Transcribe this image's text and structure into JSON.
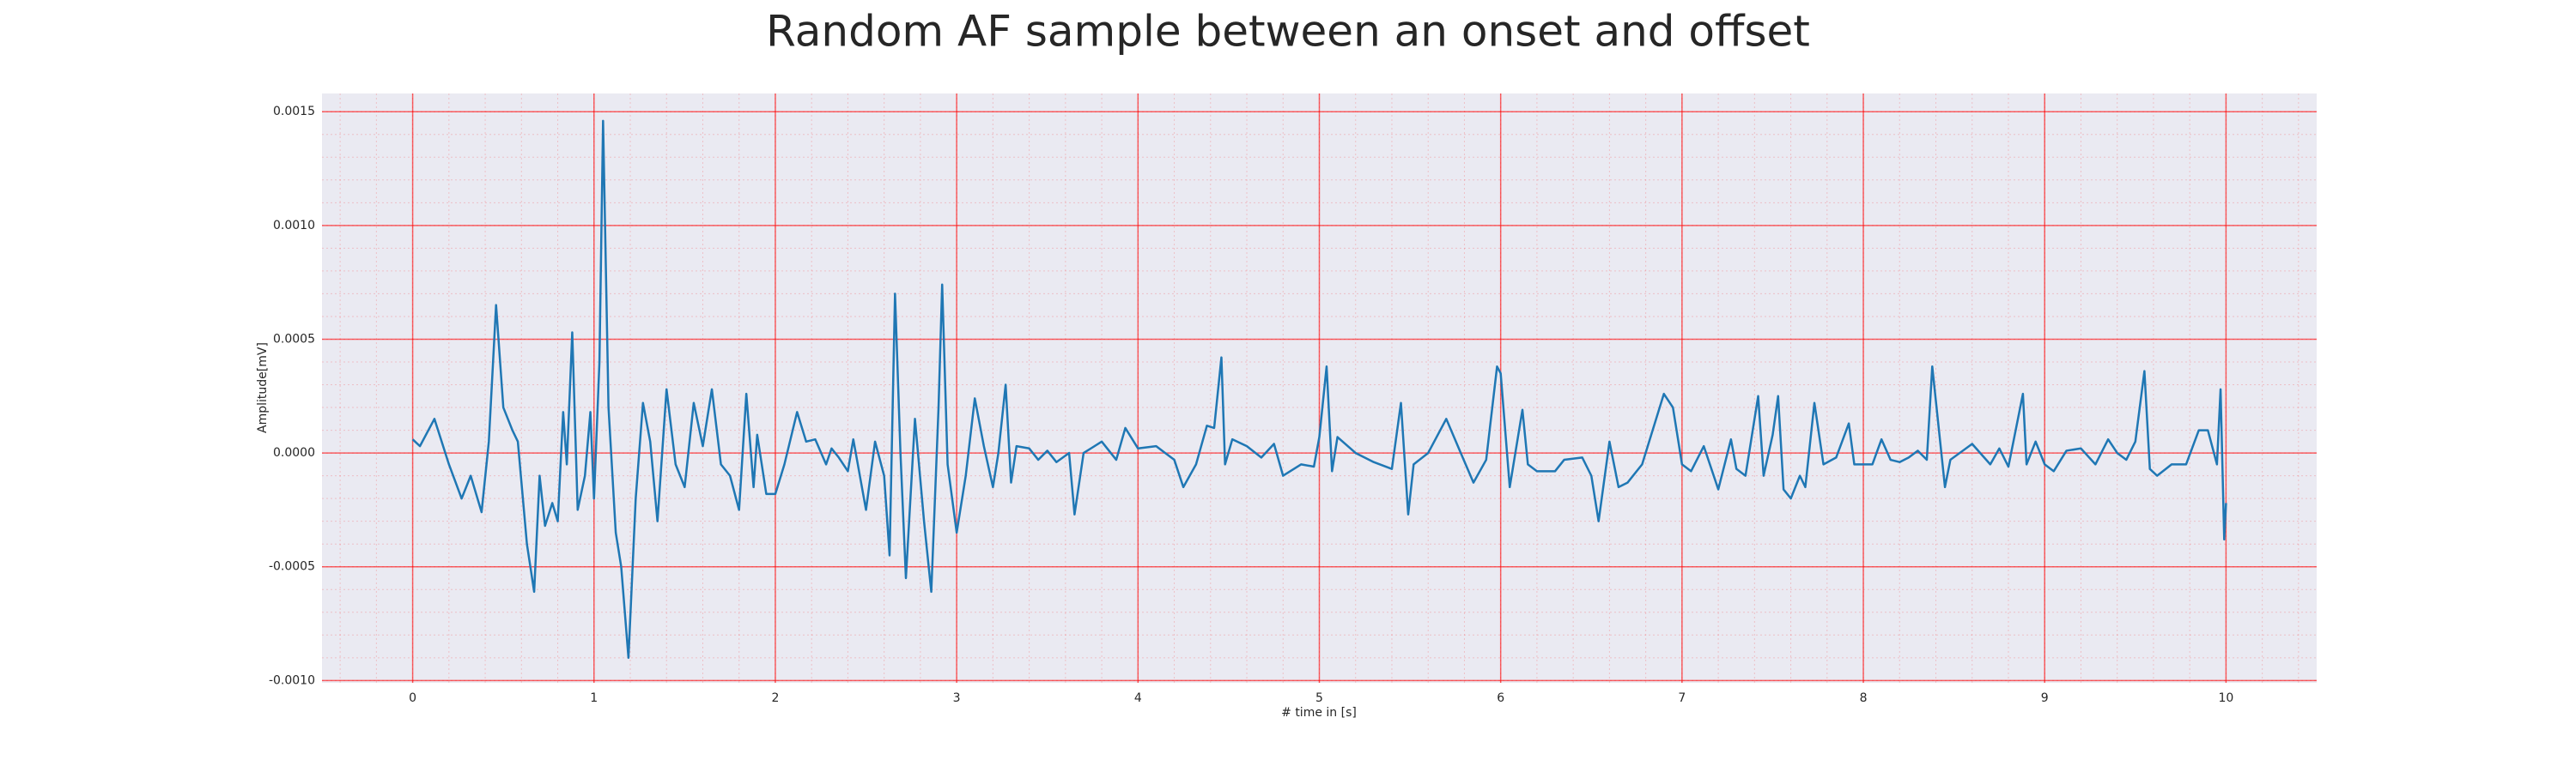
{
  "chart_data": {
    "type": "line",
    "title": "Random AF sample between an onset and offset",
    "x_label": "# time in [s]",
    "y_label": "Amplitude[mV]",
    "xlim": [
      -0.5,
      10.5
    ],
    "ylim": [
      -0.00101,
      0.00158
    ],
    "xticks": [
      0,
      1,
      2,
      3,
      4,
      5,
      6,
      7,
      8,
      9,
      10
    ],
    "yticks": [
      {
        "value": -0.001,
        "label": "-0.0010"
      },
      -0.0005,
      {
        "value": 0,
        "label": "0.0000"
      },
      0.0005,
      {
        "value": 0.001,
        "label": "0.0010"
      },
      0.0015
    ],
    "grid": true,
    "minor_grid": true,
    "grid_color": "#ff0000",
    "background": "#eaeaf2",
    "x": [
      0,
      0.04,
      0.12,
      0.2,
      0.27,
      0.32,
      0.38,
      0.42,
      0.46,
      0.5,
      0.55,
      0.58,
      0.63,
      0.67,
      0.7,
      0.73,
      0.77,
      0.8,
      0.83,
      0.85,
      0.88,
      0.91,
      0.95,
      0.98,
      1.0,
      1.03,
      1.05,
      1.08,
      1.12,
      1.15,
      1.19,
      1.23,
      1.27,
      1.31,
      1.35,
      1.4,
      1.45,
      1.5,
      1.55,
      1.6,
      1.65,
      1.7,
      1.75,
      1.8,
      1.84,
      1.88,
      1.9,
      1.95,
      2.0,
      2.05,
      2.12,
      2.17,
      2.22,
      2.28,
      2.31,
      2.35,
      2.4,
      2.43,
      2.5,
      2.55,
      2.6,
      2.63,
      2.66,
      2.69,
      2.72,
      2.77,
      2.82,
      2.86,
      2.9,
      2.92,
      2.95,
      3.0,
      3.05,
      3.1,
      3.15,
      3.2,
      3.23,
      3.27,
      3.3,
      3.33,
      3.4,
      3.45,
      3.5,
      3.55,
      3.62,
      3.65,
      3.7,
      3.8,
      3.88,
      3.93,
      4.0,
      4.1,
      4.15,
      4.2,
      4.25,
      4.32,
      4.38,
      4.42,
      4.46,
      4.48,
      4.52,
      4.6,
      4.68,
      4.75,
      4.8,
      4.9,
      4.97,
      5.0,
      5.04,
      5.07,
      5.1,
      5.2,
      5.3,
      5.4,
      5.45,
      5.49,
      5.52,
      5.6,
      5.7,
      5.78,
      5.85,
      5.92,
      5.98,
      6.0,
      6.05,
      6.12,
      6.15,
      6.2,
      6.3,
      6.35,
      6.45,
      6.5,
      6.54,
      6.6,
      6.65,
      6.7,
      6.78,
      6.9,
      6.95,
      7.0,
      7.05,
      7.12,
      7.2,
      7.27,
      7.3,
      7.35,
      7.42,
      7.45,
      7.5,
      7.53,
      7.56,
      7.6,
      7.65,
      7.68,
      7.73,
      7.78,
      7.85,
      7.92,
      7.95,
      8.05,
      8.1,
      8.15,
      8.2,
      8.25,
      8.3,
      8.35,
      8.38,
      8.45,
      8.48,
      8.6,
      8.7,
      8.75,
      8.8,
      8.88,
      8.9,
      8.95,
      9.0,
      9.05,
      9.12,
      9.2,
      9.28,
      9.35,
      9.4,
      9.45,
      9.5,
      9.55,
      9.58,
      9.62,
      9.7,
      9.78,
      9.85,
      9.9,
      9.95,
      9.97,
      9.99,
      10.0
    ],
    "series": [
      {
        "color": "#1f77b4",
        "values": [
          6e-05,
          3e-05,
          0.00015,
          -5e-05,
          -0.0002,
          -0.0001,
          -0.00026,
          5e-05,
          0.00065,
          0.0002,
          0.0001,
          5e-05,
          -0.0004,
          -0.00061,
          -0.0001,
          -0.00032,
          -0.00022,
          -0.0003,
          0.00018,
          -5e-05,
          0.00053,
          -0.00025,
          -0.0001,
          0.00018,
          -0.0002,
          0.0004,
          0.00146,
          0.0002,
          -0.00035,
          -0.0005,
          -0.0009,
          -0.0002,
          0.00022,
          5e-05,
          -0.0003,
          0.00028,
          -5e-05,
          -0.00015,
          0.00022,
          3e-05,
          0.00028,
          -5e-05,
          -0.0001,
          -0.00025,
          0.00026,
          -0.00015,
          8e-05,
          -0.00018,
          -0.00018,
          -5e-05,
          0.00018,
          5e-05,
          6e-05,
          -5e-05,
          2e-05,
          -2e-05,
          -8e-05,
          6e-05,
          -0.00025,
          5e-05,
          -0.0001,
          -0.00045,
          0.0007,
          0,
          -0.00055,
          0.00015,
          -0.0003,
          -0.00061,
          0.0002,
          0.00074,
          -5e-05,
          -0.00035,
          -0.0001,
          0.00024,
          3e-05,
          -0.00015,
          0,
          0.0003,
          -0.00013,
          3e-05,
          2e-05,
          -3e-05,
          1e-05,
          -4e-05,
          0,
          -0.00027,
          0,
          5e-05,
          -3e-05,
          0.00011,
          2e-05,
          3e-05,
          0,
          -3e-05,
          -0.00015,
          -5e-05,
          0.00012,
          0.00011,
          0.00042,
          -5e-05,
          6e-05,
          3e-05,
          -2e-05,
          4e-05,
          -0.0001,
          -5e-05,
          -6e-05,
          7e-05,
          0.00038,
          -8e-05,
          7e-05,
          0,
          -4e-05,
          -7e-05,
          0.00022,
          -0.00027,
          -5e-05,
          0,
          0.00015,
          0,
          -0.00013,
          -3e-05,
          0.00038,
          0.00035,
          -0.00015,
          0.00019,
          -5e-05,
          -8e-05,
          -8e-05,
          -3e-05,
          -2e-05,
          -0.0001,
          -0.0003,
          5e-05,
          -0.00015,
          -0.00013,
          -5e-05,
          0.00026,
          0.0002,
          -5e-05,
          -8e-05,
          3e-05,
          -0.00016,
          6e-05,
          -7e-05,
          -0.0001,
          0.00025,
          -0.0001,
          8e-05,
          0.00025,
          -0.00016,
          -0.0002,
          -0.0001,
          -0.00015,
          0.00022,
          -5e-05,
          -2e-05,
          0.00013,
          -5e-05,
          -5e-05,
          6e-05,
          -3e-05,
          -4e-05,
          -2e-05,
          1e-05,
          -3e-05,
          0.00038,
          -0.00015,
          -3e-05,
          4e-05,
          -5e-05,
          2e-05,
          -6e-05,
          0.00026,
          -5e-05,
          5e-05,
          -5e-05,
          -8e-05,
          1e-05,
          2e-05,
          -5e-05,
          6e-05,
          0,
          -3e-05,
          5e-05,
          0.00036,
          -7e-05,
          -0.0001,
          -5e-05,
          -5e-05,
          0.0001,
          0.0001,
          -5e-05,
          0.00028,
          -0.00038,
          -0.00022
        ]
      }
    ]
  }
}
